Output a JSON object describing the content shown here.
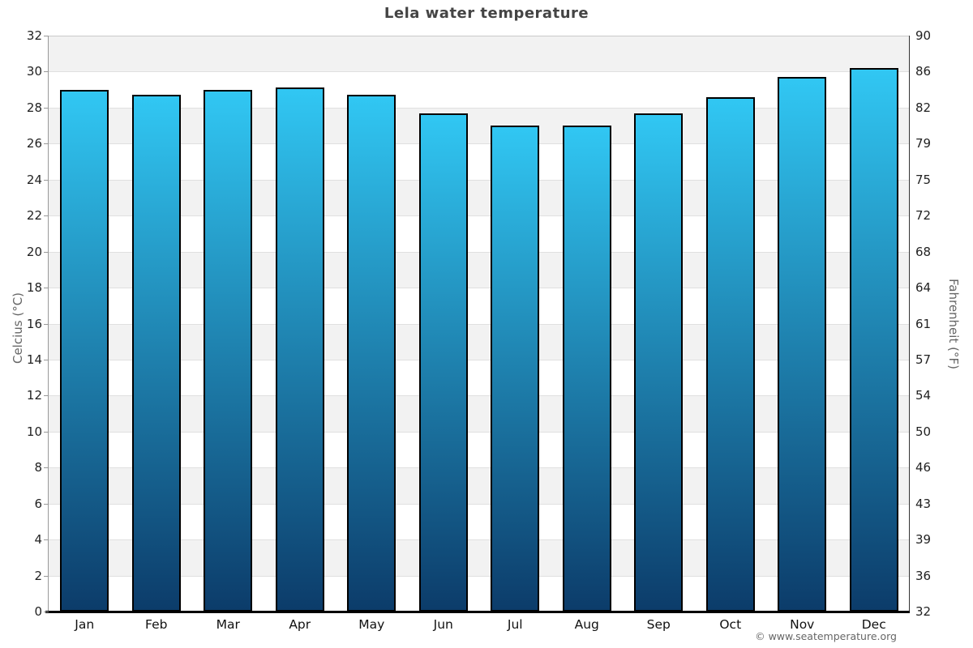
{
  "page": {
    "title": "Lela water temperature",
    "copyright": "© www.seatemperature.org"
  },
  "axes": {
    "left_label": "Celcius (°C)",
    "right_label": "Fahrenheit (°F)"
  },
  "chart_data": {
    "type": "bar",
    "title": "Lela water temperature",
    "categories": [
      "Jan",
      "Feb",
      "Mar",
      "Apr",
      "May",
      "Jun",
      "Jul",
      "Aug",
      "Sep",
      "Oct",
      "Nov",
      "Dec"
    ],
    "values": [
      29.0,
      28.7,
      29.0,
      29.1,
      28.7,
      27.7,
      27.0,
      27.0,
      27.7,
      28.6,
      29.7,
      30.2
    ],
    "unit": "°C",
    "ylabel_left": "Celcius (°C)",
    "ylabel_right": "Fahrenheit (°F)",
    "ylim_celsius": [
      0,
      32
    ],
    "celsius_ticks": [
      32,
      30,
      28,
      26,
      24,
      22,
      20,
      18,
      16,
      14,
      12,
      10,
      8,
      6,
      4,
      2,
      0
    ],
    "fahrenheit_ticks": [
      90,
      86,
      82,
      79,
      75,
      72,
      68,
      64,
      61,
      57,
      54,
      50,
      46,
      43,
      39,
      36,
      32
    ],
    "grid": "horizontal alternating bands, gridline every 2°C",
    "legend": "none",
    "colors": {
      "bar_gradient_top": "#31c7f3",
      "bar_gradient_bottom": "#0c3c6a",
      "bar_border": "#000000",
      "band_gray": "#f2f2f2",
      "band_white": "#ffffff",
      "title_text": "#444444",
      "tick_text": "#222222",
      "axis_unit_text": "#666666"
    }
  }
}
